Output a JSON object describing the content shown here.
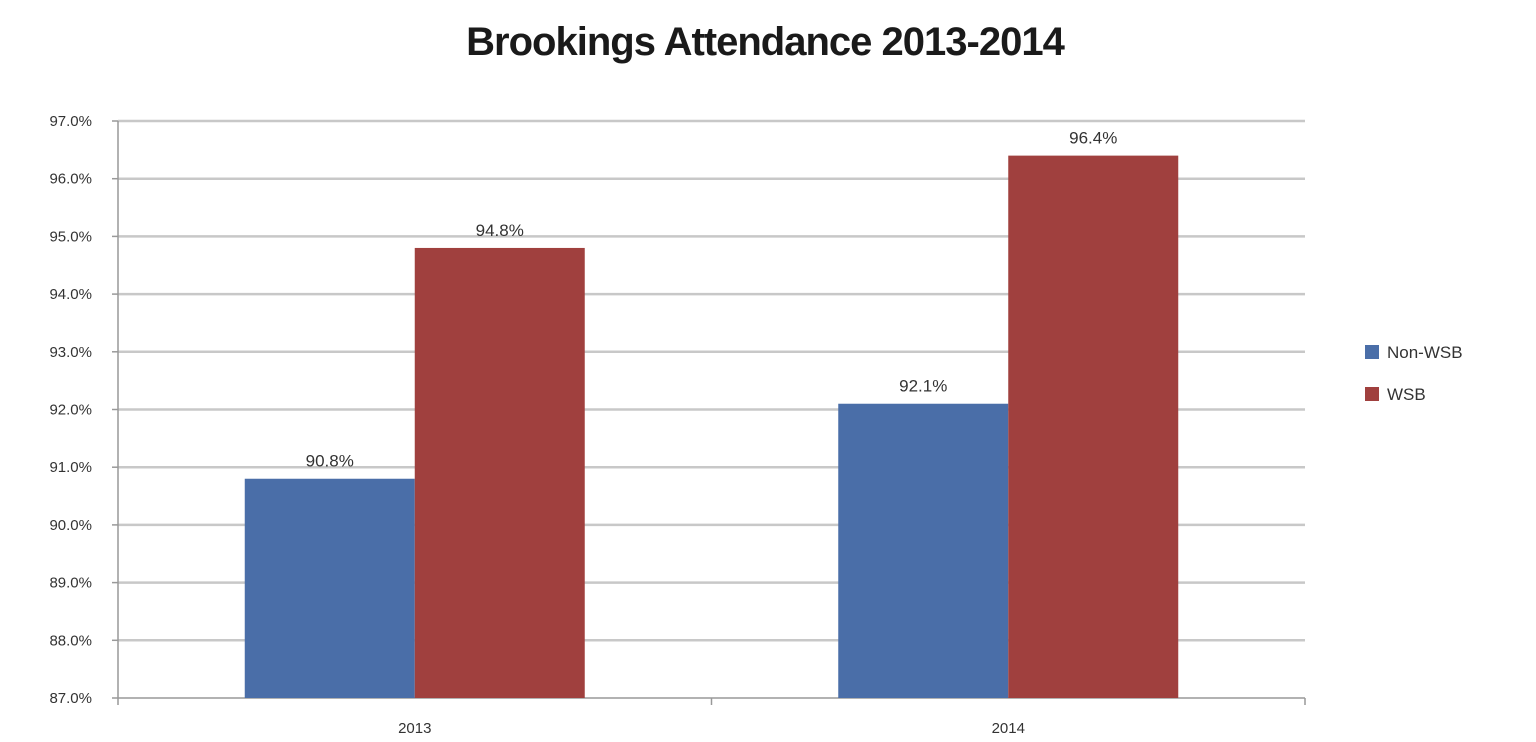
{
  "chart_data": {
    "type": "bar",
    "title": "Brookings Attendance 2013-2014",
    "categories": [
      "2013",
      "2014"
    ],
    "series": [
      {
        "name": "Non-WSB",
        "values": [
          90.8,
          92.1
        ],
        "labels": [
          "90.8%",
          "92.1%"
        ],
        "color": "#4a6ea8"
      },
      {
        "name": "WSB",
        "values": [
          94.8,
          96.4
        ],
        "labels": [
          "94.8%",
          "96.4%"
        ],
        "color": "#a0403e"
      }
    ],
    "ylim": [
      87,
      97
    ],
    "yticks": [
      87,
      88,
      89,
      90,
      91,
      92,
      93,
      94,
      95,
      96,
      97
    ],
    "ytick_labels": [
      "87.0%",
      "88.0%",
      "89.0%",
      "90.0%",
      "91.0%",
      "92.0%",
      "93.0%",
      "94.0%",
      "95.0%",
      "96.0%",
      "97.0%"
    ],
    "xlabel": "",
    "ylabel": "",
    "grid": true,
    "legend_position": "right"
  }
}
